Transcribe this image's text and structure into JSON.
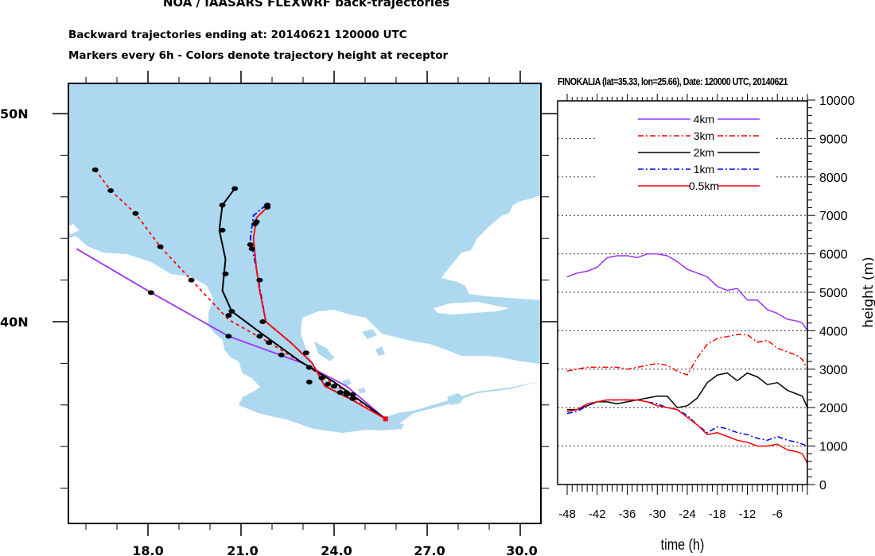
{
  "header": {
    "title": "NOA / IAASARS FLEXWRF back-trajectories",
    "subtitle1": "Backward trajectories ending at: 20140621   120000 UTC",
    "subtitle2": "Markers every 6h - Colors denote trajectory height at receptor"
  },
  "colors": {
    "land": "#add8f0",
    "sea": "#ffffff",
    "4km": "#9933ff",
    "3km": "#ff0000",
    "2km": "#000000",
    "1km": "#0000ff",
    "0.5km": "#ff0000"
  },
  "map": {
    "lon_ticks": [
      "18.0",
      "21.0",
      "24.0",
      "27.0",
      "30.0"
    ],
    "lat_ticks": [
      "50N",
      "40N"
    ],
    "receptor": {
      "lon": 25.66,
      "lat": 35.33
    },
    "trajectories": [
      {
        "name": "4km",
        "style": "solid",
        "points": [
          [
            15.7,
            43.5
          ],
          [
            18.1,
            41.4
          ],
          [
            20.6,
            39.3
          ],
          [
            23.0,
            38.0
          ],
          [
            24.4,
            36.9
          ],
          [
            25.66,
            35.33
          ]
        ],
        "markers": [
          [
            18.1,
            41.4
          ],
          [
            20.6,
            39.3
          ],
          [
            23.2,
            37.1
          ],
          [
            24.4,
            36.5
          ]
        ]
      },
      {
        "name": "3km",
        "style": "dashed",
        "points": [
          [
            16.3,
            47.3
          ],
          [
            16.8,
            46.3
          ],
          [
            17.6,
            45.2
          ],
          [
            18.4,
            43.6
          ],
          [
            19.4,
            42.0
          ],
          [
            20.6,
            40.1
          ],
          [
            21.9,
            39.0
          ],
          [
            23.1,
            37.9
          ],
          [
            24.2,
            36.8
          ],
          [
            25.66,
            35.33
          ]
        ],
        "markers": [
          [
            16.3,
            47.3
          ],
          [
            16.8,
            46.3
          ],
          [
            17.6,
            45.2
          ],
          [
            18.4,
            43.6
          ],
          [
            19.4,
            42.0
          ],
          [
            20.6,
            40.3
          ],
          [
            21.9,
            39.0
          ],
          [
            23.6,
            37.3
          ],
          [
            24.4,
            36.6
          ]
        ]
      },
      {
        "name": "2km",
        "style": "solid",
        "points": [
          [
            20.8,
            46.4
          ],
          [
            20.4,
            45.6
          ],
          [
            20.3,
            44.4
          ],
          [
            20.5,
            43.0
          ],
          [
            20.4,
            41.5
          ],
          [
            20.7,
            40.5
          ],
          [
            21.6,
            39.5
          ],
          [
            22.9,
            38.1
          ],
          [
            24.0,
            37.1
          ],
          [
            25.66,
            35.33
          ]
        ],
        "markers": [
          [
            20.8,
            46.4
          ],
          [
            20.4,
            45.6
          ],
          [
            20.4,
            44.4
          ],
          [
            20.5,
            42.3
          ],
          [
            20.7,
            40.5
          ],
          [
            21.6,
            39.3
          ],
          [
            22.3,
            38.4
          ],
          [
            23.2,
            37.8
          ],
          [
            24.0,
            36.9
          ],
          [
            24.6,
            36.5
          ]
        ]
      },
      {
        "name": "1km",
        "style": "dashdot",
        "points": [
          [
            21.8,
            45.6
          ],
          [
            21.4,
            45.1
          ],
          [
            21.3,
            44.0
          ],
          [
            21.5,
            42.5
          ],
          [
            21.8,
            40.0
          ],
          [
            22.6,
            39.0
          ],
          [
            23.3,
            38.0
          ],
          [
            23.7,
            36.9
          ],
          [
            24.4,
            36.4
          ],
          [
            25.66,
            35.33
          ]
        ],
        "markers": []
      },
      {
        "name": "0.5km",
        "style": "solid",
        "points": [
          [
            21.85,
            45.5
          ],
          [
            21.5,
            45.0
          ],
          [
            21.4,
            44.0
          ],
          [
            21.5,
            42.5
          ],
          [
            21.6,
            41.5
          ],
          [
            21.8,
            40.0
          ],
          [
            22.6,
            39.0
          ],
          [
            23.3,
            38.0
          ],
          [
            23.7,
            36.9
          ],
          [
            24.5,
            36.3
          ],
          [
            25.66,
            35.33
          ]
        ],
        "markers": [
          [
            21.85,
            45.6
          ],
          [
            21.85,
            45.5
          ],
          [
            21.5,
            44.8
          ],
          [
            21.45,
            44.7
          ],
          [
            21.3,
            43.7
          ],
          [
            21.35,
            43.5
          ],
          [
            21.6,
            42.0
          ],
          [
            21.7,
            40.0
          ],
          [
            23.1,
            38.5
          ],
          [
            23.8,
            37.0
          ],
          [
            24.2,
            36.6
          ],
          [
            24.6,
            36.3
          ]
        ]
      }
    ]
  },
  "chart_data": {
    "type": "line",
    "title": "FINOKALIA (lat=35.33,  lon=25.66), Date: 120000 UTC, 20140621",
    "xlabel": "time (h)",
    "ylabel": "height (m)",
    "xlim": [
      -48,
      0
    ],
    "ylim": [
      0,
      10000
    ],
    "x_ticks": [
      "-48",
      "-42",
      "-36",
      "-30",
      "-24",
      "-18",
      "-12",
      "-6"
    ],
    "y_ticks": [
      "0",
      "1000",
      "2000",
      "3000",
      "4000",
      "5000",
      "6000",
      "7000",
      "8000",
      "9000",
      "10000"
    ],
    "grid": "horizontal dotted",
    "legend_position": "top-center",
    "x": [
      -48,
      -46,
      -44,
      -42,
      -40,
      -38,
      -36,
      -34,
      -32,
      -30,
      -28,
      -26,
      -24,
      -22,
      -20,
      -18,
      -16,
      -14,
      -12,
      -10,
      -8,
      -6,
      -4,
      -2,
      -1,
      0
    ],
    "series": [
      {
        "name": "4km",
        "style": "solid",
        "values": [
          5400,
          5500,
          5550,
          5650,
          5900,
          5950,
          5950,
          5900,
          6000,
          6000,
          5950,
          5800,
          5600,
          5500,
          5400,
          5150,
          5050,
          5100,
          4800,
          4800,
          4550,
          4450,
          4300,
          4250,
          4200,
          4000
        ]
      },
      {
        "name": "3km",
        "style": "dashdot",
        "values": [
          2950,
          3000,
          3050,
          3050,
          3050,
          3050,
          3000,
          3050,
          3100,
          3150,
          3100,
          2950,
          2850,
          3300,
          3650,
          3800,
          3850,
          3900,
          3900,
          3700,
          3750,
          3550,
          3450,
          3350,
          3250,
          3000
        ]
      },
      {
        "name": "2km",
        "style": "solid",
        "values": [
          1950,
          1950,
          2050,
          2150,
          2150,
          2100,
          2150,
          2200,
          2250,
          2300,
          2300,
          2000,
          2050,
          2250,
          2650,
          2850,
          2900,
          2700,
          2900,
          2800,
          2600,
          2650,
          2450,
          2350,
          2300,
          2000
        ]
      },
      {
        "name": "1km",
        "style": "dashdot",
        "values": [
          1850,
          1900,
          2050,
          2150,
          2200,
          2200,
          2200,
          2200,
          2150,
          2100,
          2000,
          1950,
          1800,
          1550,
          1350,
          1500,
          1450,
          1350,
          1300,
          1200,
          1150,
          1250,
          1150,
          1100,
          1050,
          1000
        ]
      },
      {
        "name": "0.5km",
        "style": "solid",
        "values": [
          1900,
          1950,
          2100,
          2150,
          2200,
          2200,
          2200,
          2200,
          2150,
          2050,
          2000,
          1950,
          1750,
          1550,
          1300,
          1350,
          1250,
          1150,
          1100,
          1000,
          1000,
          1050,
          900,
          850,
          800,
          550
        ]
      }
    ]
  }
}
